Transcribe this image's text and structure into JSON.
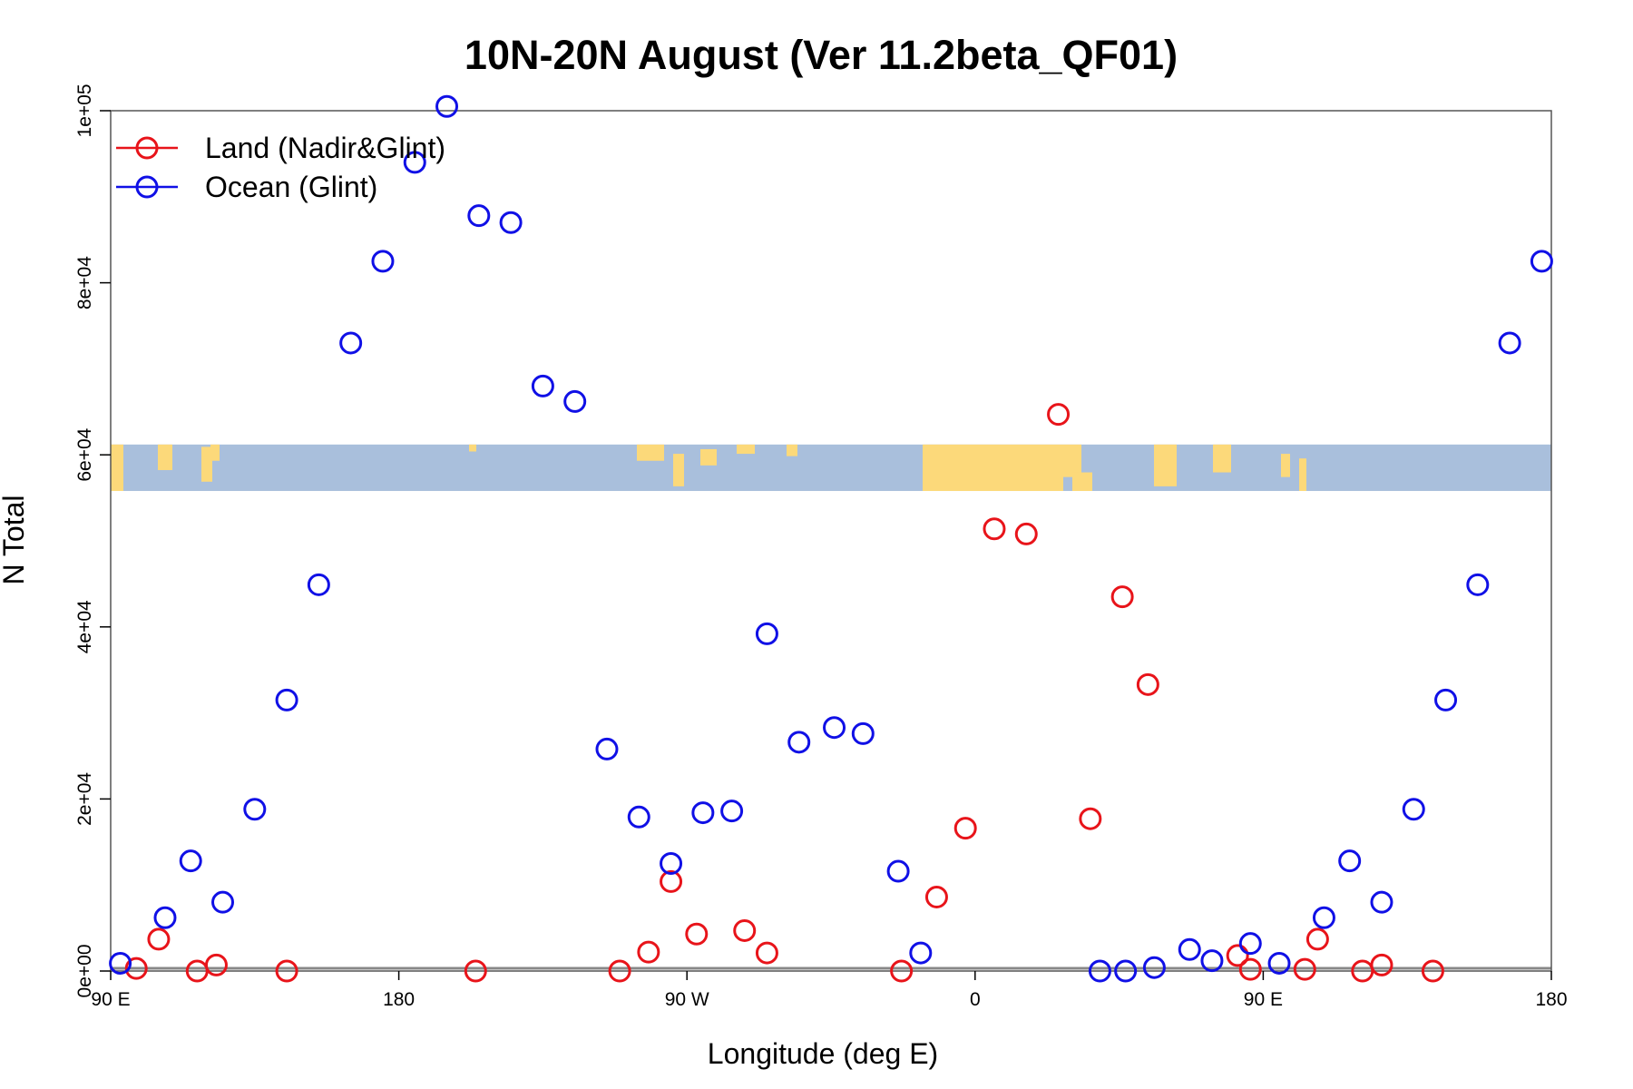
{
  "chart_data": {
    "type": "scatter",
    "title": "10N-20N August (Ver 11.2beta_QF01)",
    "xlabel": "Longitude (deg E)",
    "ylabel": "N Total",
    "xlim": [
      0,
      450
    ],
    "ylim": [
      0,
      100000
    ],
    "x_ticks": [
      {
        "value": 0,
        "label": "90 E"
      },
      {
        "value": 90,
        "label": "180"
      },
      {
        "value": 180,
        "label": "90 W"
      },
      {
        "value": 270,
        "label": "0"
      },
      {
        "value": 360,
        "label": "90 E"
      },
      {
        "value": 450,
        "label": "180"
      }
    ],
    "y_ticks": [
      {
        "value": 0,
        "label": "0e+00"
      },
      {
        "value": 20000,
        "label": "2e+04"
      },
      {
        "value": 40000,
        "label": "4e+04"
      },
      {
        "value": 60000,
        "label": "6e+04"
      },
      {
        "value": 80000,
        "label": "8e+04"
      },
      {
        "value": 100000,
        "label": "1e+05"
      }
    ],
    "legend": {
      "position": "top-left"
    },
    "map_strip": {
      "y_range": [
        55800,
        61200
      ],
      "ocean_color": "#a9bfdc",
      "land_color": "#fcd97a"
    },
    "series": [
      {
        "name": "Land (Nadir&Glint)",
        "color": "#e8141a",
        "points": [
          [
            8,
            300
          ],
          [
            15,
            3700
          ],
          [
            27,
            0
          ],
          [
            33,
            700
          ],
          [
            55,
            0
          ],
          [
            114,
            0
          ],
          [
            159,
            0
          ],
          [
            168,
            2200
          ],
          [
            175,
            10400
          ],
          [
            183,
            4300
          ],
          [
            198,
            4700
          ],
          [
            205,
            2100
          ],
          [
            247,
            0
          ],
          [
            258,
            8600
          ],
          [
            267,
            16600
          ],
          [
            276,
            51400
          ],
          [
            286,
            50800
          ],
          [
            296,
            64700
          ],
          [
            306,
            17700
          ],
          [
            316,
            43500
          ],
          [
            324,
            33300
          ],
          [
            352,
            1800
          ],
          [
            356,
            200
          ],
          [
            373,
            200
          ],
          [
            377,
            3700
          ],
          [
            391,
            0
          ],
          [
            397,
            700
          ],
          [
            413,
            0
          ]
        ]
      },
      {
        "name": "Ocean (Glint)",
        "color": "#1010e6",
        "points": [
          [
            3,
            900
          ],
          [
            17,
            6200
          ],
          [
            25,
            12800
          ],
          [
            35,
            8000
          ],
          [
            45,
            18800
          ],
          [
            55,
            31500
          ],
          [
            65,
            44900
          ],
          [
            75,
            73000
          ],
          [
            85,
            82500
          ],
          [
            95,
            94000
          ],
          [
            105,
            100500
          ],
          [
            115,
            87800
          ],
          [
            125,
            87000
          ],
          [
            135,
            68000
          ],
          [
            145,
            66200
          ],
          [
            155,
            25800
          ],
          [
            165,
            17900
          ],
          [
            175,
            12500
          ],
          [
            185,
            18400
          ],
          [
            194,
            18600
          ],
          [
            205,
            39200
          ],
          [
            215,
            26600
          ],
          [
            226,
            28300
          ],
          [
            235,
            27600
          ],
          [
            246,
            11600
          ],
          [
            253,
            2100
          ],
          [
            309,
            0
          ],
          [
            317,
            0
          ],
          [
            326,
            400
          ],
          [
            337,
            2500
          ],
          [
            344,
            1200
          ],
          [
            356,
            3200
          ],
          [
            365,
            900
          ],
          [
            379,
            6200
          ],
          [
            387,
            12800
          ],
          [
            397,
            8000
          ],
          [
            407,
            18800
          ],
          [
            417,
            31500
          ],
          [
            427,
            44900
          ],
          [
            437,
            73000
          ],
          [
            447,
            82500
          ]
        ]
      }
    ]
  }
}
